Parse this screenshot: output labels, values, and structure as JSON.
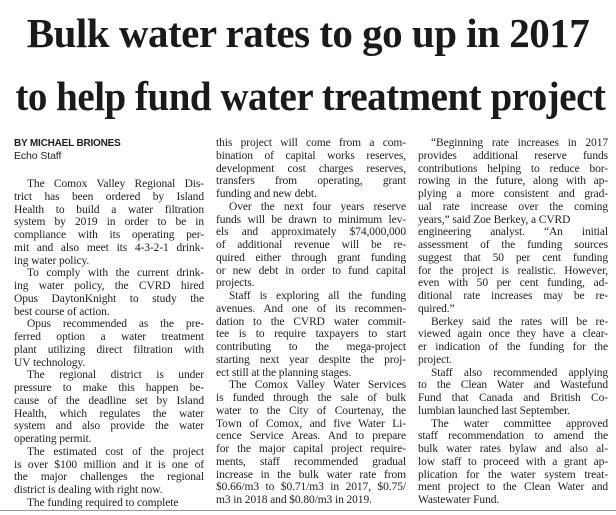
{
  "headline": [
    "Bulk water rates to go up in 2017",
    "to help fund water treatment project"
  ],
  "byline": "BY MICHAEL BRIONES",
  "byline_affiliation": "Echo Staff",
  "columns": [
    [
      [
        "The Comox Valley Regional Dis-",
        "trict has been ordered by Island",
        "Health to build a water filtration",
        "system by 2019 in order to be in",
        "compliance with its operating per-",
        "mit and also meet its 4-3-2-1 drink-",
        "ing water policy."
      ],
      [
        "To comply with the current drink-",
        "ing water policy, the CVRD hired",
        "Opus DaytonKnight to study the",
        "best course of action."
      ],
      [
        "Opus recommended as the pre-",
        "ferred option a water treatment",
        "plant utilizing direct filtration with",
        "UV technology."
      ],
      [
        "The regional district is under",
        "pressure to make this happen be-",
        "cause of the deadline set by Island",
        "Health, which regulates the water",
        "system and also provide the water",
        "operating permit."
      ],
      [
        "The estimated cost of the project",
        "is over $100 million and it is one of",
        "the major challenges the regional",
        "district is dealing with right now."
      ],
      [
        "The funding required to complete"
      ]
    ],
    [
      [
        "this project will come from a com-",
        "bination of capital works reserves,",
        "development cost charges reserves,",
        "transfers from operating, grant",
        "funding and new debt."
      ],
      [
        "Over the next four years reserve",
        "funds will be drawn to minimum lev-",
        "els and approximately $74,000,000",
        "of additional revenue will be re-",
        "quired either through grant funding",
        "or new debt in order to fund capital",
        "projects."
      ],
      [
        "Staff is exploring all the funding",
        "avenues. And one of its recommen-",
        "dation to the CVRD water commit-",
        "tee is to require taxpayers to start",
        "contributing to the mega-project",
        "starting next year despite the proj-",
        "ect still at the planning stages."
      ],
      [
        "The Comox Valley Water Services",
        "is funded through the sale of bulk",
        "water to the City of Courtenay, the",
        "Town of Comox, and five Water Li-",
        "cence Service Areas. And to prepare",
        "for the major capital project require-",
        "ments, staff recommended gradual",
        "increase in the bulk water rate from",
        "$0.66/m3 to $0.71/m3 in 2017, $0.75/",
        "m3 in 2018 and $0.80/m3 in 2019."
      ]
    ],
    [
      [
        "“Beginning rate increases in 2017",
        "provides additional reserve funds",
        "contributions helping to reduce bor-",
        "rowing in the future, along with ap-",
        "plying a more consistent and grad-",
        "ual rate increase over the coming",
        "years,” said Zoe Berkey, a CVRD"
      ],
      [
        "engineering analyst. “An initial",
        "assessment of the funding sources",
        "suggest that 50 per cent funding",
        "for the project is realistic. However,",
        "even with 50 per cent funding, ad-",
        "ditional rate increases may be re-",
        "quired.”"
      ],
      [
        "Berkey said the rates will be re-",
        "viewed again once they have a clear-",
        "er indication of the funding for the",
        "project."
      ],
      [
        "Staff also recommended applying",
        "to the Clean Water and Wastefund",
        "Fund that Canada and British Co-",
        "lumbian launched last September."
      ],
      [
        "The water committee approved",
        "staff recommendation to amend the",
        "bulk water rates bylaw and also al-",
        "low staff to proceed with a grant ap-",
        "plication for the water system treat-",
        "ment project to the Clean Water and",
        "Wastewater Fund."
      ]
    ]
  ]
}
